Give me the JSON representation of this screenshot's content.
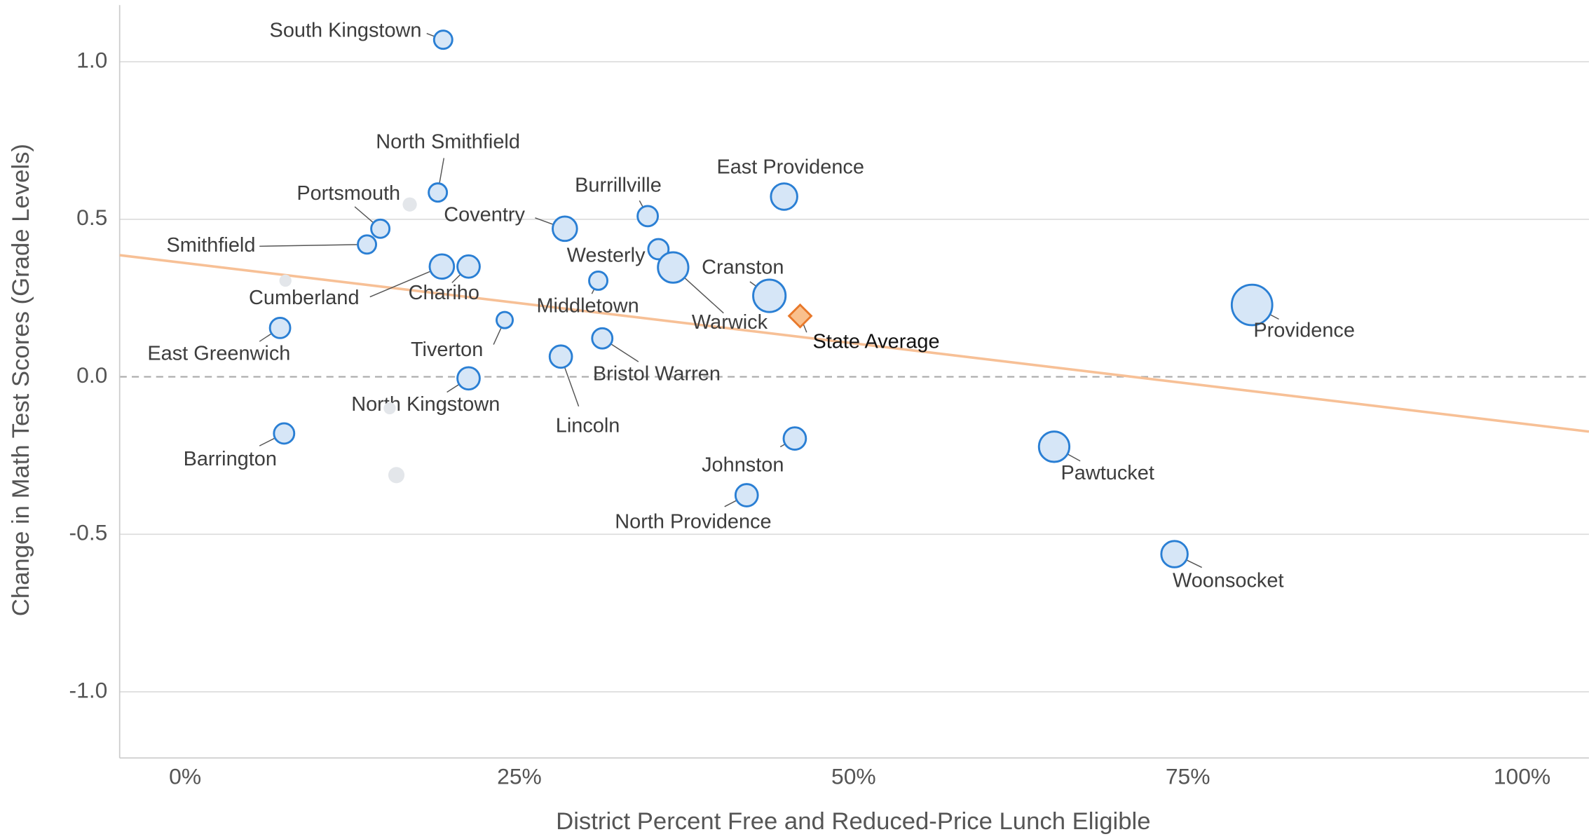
{
  "chart_data": {
    "type": "scatter",
    "x_label": "District Percent Free and Reduced-Price Lunch Eligible",
    "y_label": "Change in Math Test Scores (Grade Levels)",
    "xlim": [
      -4.9,
      105
    ],
    "ylim": [
      -1.21,
      1.18
    ],
    "xticks": [
      {
        "value": 0,
        "label": "0%"
      },
      {
        "value": 25,
        "label": "25%"
      },
      {
        "value": 50,
        "label": "50%"
      },
      {
        "value": 75,
        "label": "75%"
      },
      {
        "value": 100,
        "label": "100%"
      }
    ],
    "yticks": [
      {
        "value": 1,
        "label": "1.0"
      },
      0.5,
      {
        "value": 0,
        "label": "0.0"
      },
      -0.5,
      {
        "value": -1,
        "label": "-1.0"
      }
    ],
    "grid": true,
    "zero_line": {
      "value": 0,
      "style": "dashed"
    },
    "labels": [
      "South Kingstown",
      "North Smithfield",
      "Portsmouth",
      "Smithfield",
      "Cumberland",
      "Chariho",
      "East Greenwich",
      "Tiverton",
      "North Kingstown",
      "Barrington",
      "Coventry",
      "Burrillville",
      "Westerly",
      "Middletown",
      "Warwick",
      "Cranston",
      "Bristol Warren",
      "Lincoln",
      "East Providence",
      "State Average",
      "Johnston",
      "North Providence",
      "Providence",
      "Pawtucket",
      "Woonsocket",
      null,
      null,
      null,
      null
    ],
    "x": [
      19.3,
      18.9,
      14.6,
      13.6,
      19.2,
      21.2,
      7.1,
      23.9,
      21.2,
      7.4,
      28.4,
      34.6,
      35.4,
      30.9,
      36.5,
      43.7,
      31.2,
      28.1,
      44.8,
      46.0,
      45.6,
      42.0,
      79.8,
      65.0,
      74.0,
      16.8,
      7.5,
      15.3,
      15.8
    ],
    "values": [
      1.07,
      0.585,
      0.47,
      0.42,
      0.35,
      0.35,
      0.155,
      0.18,
      -0.005,
      -0.18,
      0.47,
      0.51,
      0.405,
      0.305,
      0.347,
      0.257,
      0.122,
      0.064,
      0.572,
      0.193,
      -0.196,
      -0.376,
      0.228,
      -0.222,
      -0.563,
      0.547,
      0.305,
      -0.1,
      -0.312
    ],
    "sizes": [
      9,
      9,
      9,
      9,
      12,
      11,
      10,
      8,
      11,
      10,
      12,
      10,
      10,
      9,
      15,
      16,
      10,
      11,
      13,
      11,
      11,
      11,
      20,
      15,
      13,
      7,
      6,
      6,
      8
    ],
    "markers": [
      "circle",
      "circle",
      "circle",
      "circle",
      "circle",
      "circle",
      "circle",
      "circle",
      "circle",
      "circle",
      "circle",
      "circle",
      "circle",
      "circle",
      "circle",
      "circle",
      "circle",
      "circle",
      "circle",
      "diamond",
      "circle",
      "circle",
      "circle",
      "circle",
      "circle",
      "faded",
      "faded",
      "faded",
      "faded"
    ],
    "colors": {
      "circle": "#d6e6f7",
      "circle_stroke": "#2a7fd4",
      "diamond": "#f9c08d",
      "diamond_stroke": "#e8782a",
      "faded": "#e3e6ea"
    },
    "trend": {
      "x": [
        -4.9,
        105
      ],
      "y": [
        0.386,
        -0.174
      ],
      "color": "#f7c096"
    }
  }
}
